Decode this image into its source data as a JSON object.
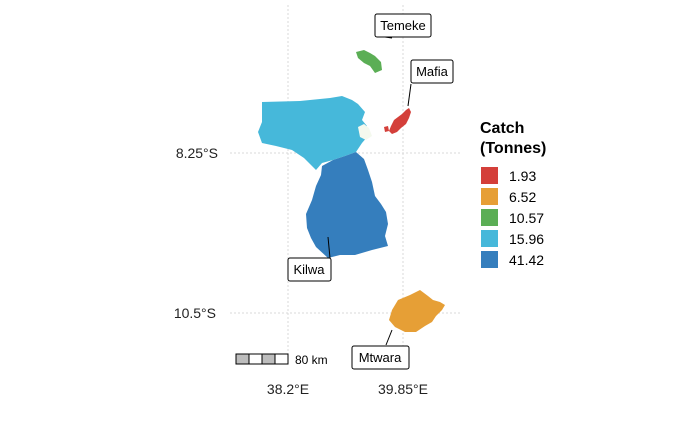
{
  "map": {
    "longitude_ticks": [
      "38.2°E",
      "39.85°E"
    ],
    "latitude_ticks": [
      "8.25°S",
      "10.5°S"
    ],
    "scale_bar": {
      "label": "80 km"
    }
  },
  "regions": [
    {
      "name": "Temeke",
      "catch": 6.52,
      "color": "#E69F36"
    },
    {
      "name": "Mafia",
      "catch": 10.57,
      "color": "#5BAE55"
    },
    {
      "name": "Kilwa",
      "catch": 41.42,
      "color": "#357EBD"
    },
    {
      "name": "Mtwara",
      "catch": 1.93,
      "color": "#D43F3A"
    },
    {
      "name": "",
      "catch": 15.96,
      "color": "#46B8DA"
    }
  ],
  "legend": {
    "title_line1": "Catch",
    "title_line2": "(Tonnes)",
    "items": [
      {
        "label": "1.93",
        "color": "#D43F3A"
      },
      {
        "label": "6.52",
        "color": "#E69F36"
      },
      {
        "label": "10.57",
        "color": "#5BAE55"
      },
      {
        "label": "15.96",
        "color": "#46B8DA"
      },
      {
        "label": "41.42",
        "color": "#357EBD"
      }
    ]
  }
}
